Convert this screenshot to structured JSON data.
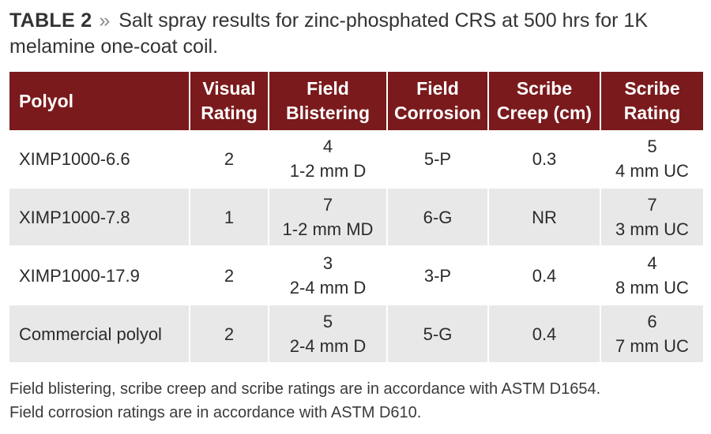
{
  "caption": {
    "label": "TABLE 2",
    "chevron": "»",
    "text": "Salt spray results for zinc-phosphated CRS at 500 hrs for 1K melamine one-coat coil."
  },
  "table": {
    "headers": [
      {
        "line1": "Polyol",
        "line2": ""
      },
      {
        "line1": "Visual",
        "line2": "Rating"
      },
      {
        "line1": "Field",
        "line2": "Blistering"
      },
      {
        "line1": "Field",
        "line2": "Corrosion"
      },
      {
        "line1": "Scribe",
        "line2": "Creep (cm)"
      },
      {
        "line1": "Scribe",
        "line2": "Rating"
      }
    ],
    "rows": [
      {
        "polyol": "XIMP1000-6.6",
        "visual": "2",
        "blister_1": "4",
        "blister_2": "1-2 mm D",
        "corrosion": "5-P",
        "creep": "0.3",
        "scribe_1": "5",
        "scribe_2": "4 mm UC"
      },
      {
        "polyol": "XIMP1000-7.8",
        "visual": "1",
        "blister_1": "7",
        "blister_2": "1-2 mm MD",
        "corrosion": "6-G",
        "creep": "NR",
        "scribe_1": "7",
        "scribe_2": "3 mm UC"
      },
      {
        "polyol": "XIMP1000-17.9",
        "visual": "2",
        "blister_1": "3",
        "blister_2": "2-4 mm D",
        "corrosion": "3-P",
        "creep": "0.4",
        "scribe_1": "4",
        "scribe_2": "8 mm UC"
      },
      {
        "polyol": "Commercial polyol",
        "visual": "2",
        "blister_1": "5",
        "blister_2": "2-4 mm D",
        "corrosion": "5-G",
        "creep": "0.4",
        "scribe_1": "6",
        "scribe_2": "7 mm UC"
      }
    ]
  },
  "footnote": {
    "line1": "Field blistering, scribe creep and scribe ratings are in accordance with ASTM D1654.",
    "line2": "Field corrosion ratings are in accordance with ASTM D610."
  },
  "colors": {
    "header_bg": "#7a1a1c",
    "header_text": "#ffffff",
    "alt_row_bg": "#e8e8e8"
  }
}
